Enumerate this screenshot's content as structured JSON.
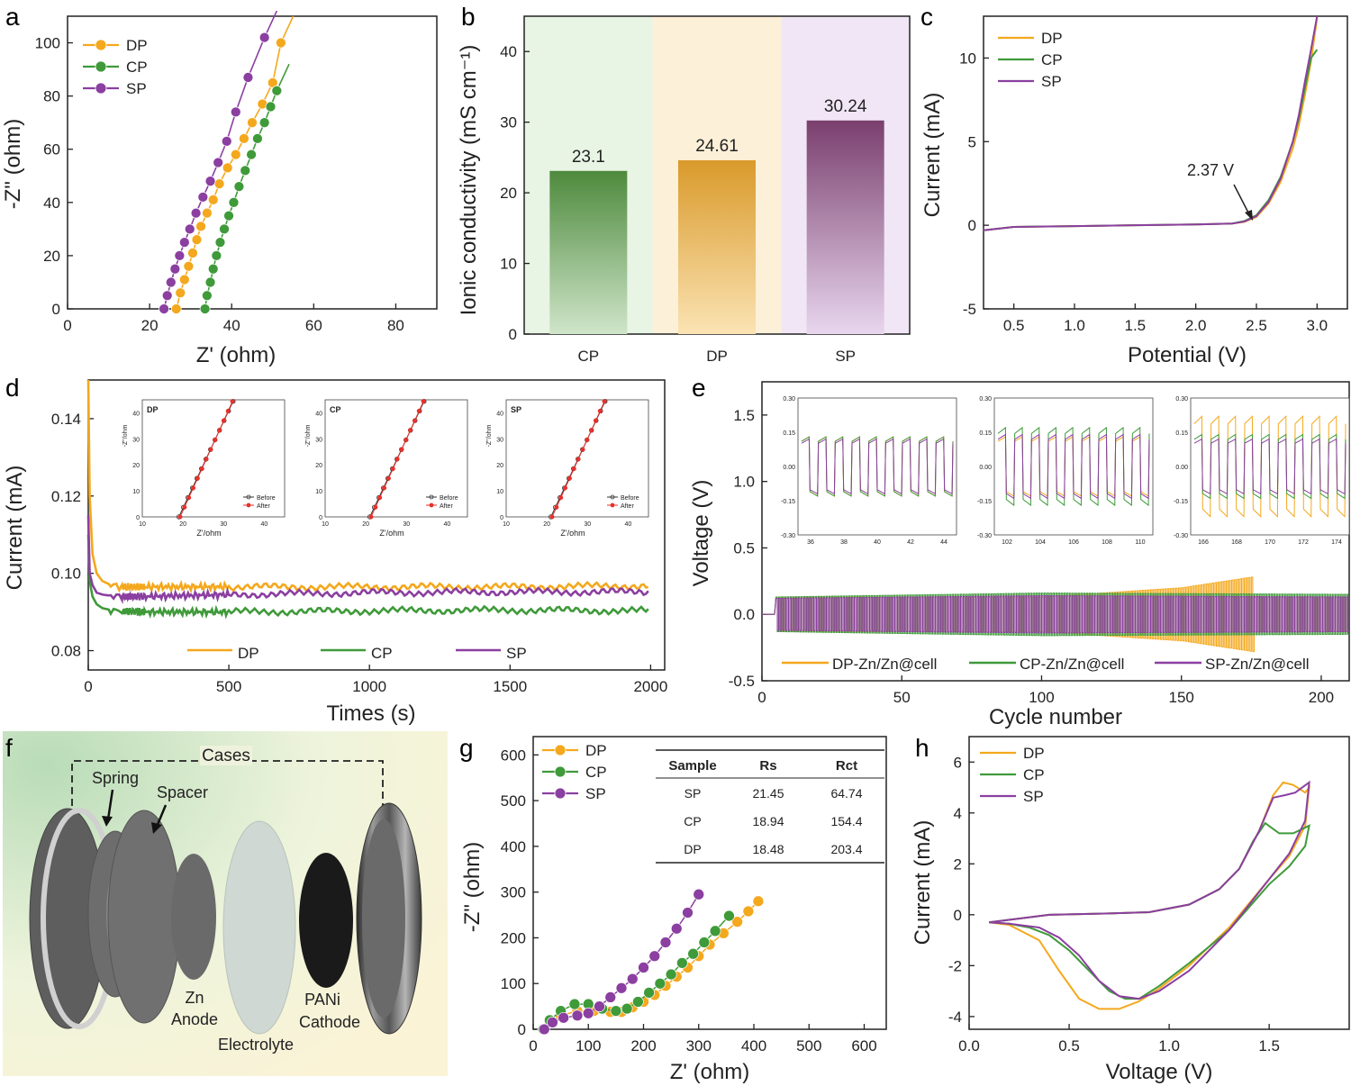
{
  "colors": {
    "DP": "#f4a81d",
    "CP": "#3f9a3a",
    "SP": "#8b3fa0",
    "red": "#e8312b",
    "black": "#333333"
  },
  "panel_labels": [
    "a",
    "b",
    "c",
    "d",
    "e",
    "f",
    "g",
    "h"
  ],
  "chart_data": [
    {
      "id": "a",
      "type": "scatter",
      "xlabel": "Z' (ohm)",
      "ylabel": "-Z\" (ohm)",
      "xlim": [
        0,
        90
      ],
      "ylim": [
        0,
        110
      ],
      "xticks": [
        0,
        20,
        40,
        60,
        80
      ],
      "yticks": [
        0,
        20,
        40,
        60,
        80,
        100
      ],
      "legend_position": "top-left",
      "series": [
        {
          "name": "DP",
          "color": "#f4a81d",
          "x": [
            26.5,
            27.5,
            28.5,
            29.5,
            30.5,
            31.5,
            32.5,
            34,
            35.5,
            37,
            39,
            41,
            43,
            45,
            47.5,
            50,
            52
          ],
          "y": [
            0,
            6,
            11,
            16,
            21,
            26,
            31,
            36,
            41,
            47,
            53,
            58,
            64,
            70,
            77,
            85,
            100
          ]
        },
        {
          "name": "CP",
          "color": "#3f9a3a",
          "x": [
            33.5,
            34,
            34.8,
            35.5,
            36.3,
            37.2,
            38.2,
            39.3,
            40.5,
            41.8,
            43.3,
            44.8,
            46.3,
            48,
            49.5,
            51
          ],
          "y": [
            0,
            5,
            10,
            15,
            20,
            25,
            30,
            35,
            40,
            46,
            52,
            58,
            64,
            70,
            76,
            82
          ]
        },
        {
          "name": "SP",
          "color": "#8b3fa0",
          "x": [
            23.5,
            24.3,
            25.2,
            26.2,
            27.3,
            28.5,
            29.8,
            31.3,
            33,
            34.8,
            36.7,
            38.8,
            41,
            44,
            48
          ],
          "y": [
            0,
            5,
            10,
            15,
            20,
            25,
            30,
            36,
            42,
            48,
            55,
            63,
            74,
            87,
            102
          ]
        }
      ]
    },
    {
      "id": "b",
      "type": "bar",
      "ylabel": "Ionic conductivity (mS cm⁻¹)",
      "categories": [
        "CP",
        "DP",
        "SP"
      ],
      "values": [
        23.1,
        24.61,
        30.24
      ],
      "value_labels": [
        "23.1",
        "24.61",
        "30.24"
      ],
      "ylim": [
        0,
        45
      ],
      "yticks": [
        0,
        10,
        20,
        30,
        40
      ],
      "bar_colors": [
        "#4e8a3d",
        "#d99a2b",
        "#7a3f6e"
      ],
      "background_colors": [
        "#e8f4e4",
        "#fdf0d8",
        "#f1e6f5"
      ]
    },
    {
      "id": "c",
      "type": "line",
      "xlabel": "Potential (V)",
      "ylabel": "Current (mA)",
      "xlim": [
        0.25,
        3.25
      ],
      "ylim": [
        -5,
        12.5
      ],
      "xticks": [
        0.5,
        1.0,
        1.5,
        2.0,
        2.5,
        3.0
      ],
      "yticks": [
        -5,
        0,
        5,
        10
      ],
      "annotation": "2.37 V",
      "legend_position": "top-left",
      "series": [
        {
          "name": "DP",
          "color": "#f4a81d",
          "x": [
            0.25,
            0.5,
            1.0,
            1.5,
            2.0,
            2.3,
            2.4,
            2.5,
            2.6,
            2.7,
            2.8,
            2.85,
            2.9,
            2.95,
            3.0
          ],
          "y": [
            -0.3,
            -0.1,
            -0.05,
            0,
            0.05,
            0.1,
            0.2,
            0.5,
            1.3,
            2.6,
            4.6,
            6.0,
            7.8,
            9.8,
            12.4
          ]
        },
        {
          "name": "CP",
          "color": "#3f9a3a",
          "x": [
            0.25,
            0.5,
            1.0,
            1.5,
            2.0,
            2.3,
            2.4,
            2.5,
            2.6,
            2.7,
            2.8,
            2.85,
            2.9,
            2.95,
            3.0
          ],
          "y": [
            -0.3,
            -0.1,
            -0.05,
            0,
            0.05,
            0.1,
            0.25,
            0.6,
            1.5,
            2.9,
            5.0,
            6.4,
            8.2,
            10.0,
            10.5
          ]
        },
        {
          "name": "SP",
          "color": "#8b3fa0",
          "x": [
            0.25,
            0.5,
            1.0,
            1.5,
            2.0,
            2.3,
            2.4,
            2.5,
            2.6,
            2.7,
            2.8,
            2.85,
            2.9,
            2.95,
            3.0
          ],
          "y": [
            -0.3,
            -0.1,
            -0.05,
            0,
            0.05,
            0.1,
            0.22,
            0.55,
            1.4,
            2.8,
            5.0,
            6.6,
            8.6,
            10.5,
            12.5
          ]
        }
      ]
    },
    {
      "id": "d",
      "type": "line",
      "xlabel": "Times (s)",
      "ylabel": "Current (mA)",
      "xlim": [
        0,
        2050
      ],
      "ylim": [
        0.075,
        0.15
      ],
      "xticks": [
        0,
        500,
        1000,
        1500,
        2000
      ],
      "yticks": [
        0.08,
        0.1,
        0.12,
        0.14
      ],
      "legend_position": "bottom",
      "series": [
        {
          "name": "DP",
          "color": "#f4a81d",
          "x": [
            0,
            5,
            15,
            30,
            50,
            80,
            120,
            200,
            500,
            1000,
            1500,
            2000
          ],
          "y": [
            0.15,
            0.12,
            0.105,
            0.1,
            0.098,
            0.097,
            0.0965,
            0.0965,
            0.0965,
            0.0965,
            0.0965,
            0.0968
          ]
        },
        {
          "name": "CP",
          "color": "#3f9a3a",
          "x": [
            0,
            5,
            15,
            30,
            50,
            80,
            120,
            200,
            500,
            1000,
            1500,
            2000
          ],
          "y": [
            0.11,
            0.098,
            0.094,
            0.092,
            0.091,
            0.0905,
            0.0902,
            0.09,
            0.09,
            0.0903,
            0.0905,
            0.0903
          ]
        },
        {
          "name": "SP",
          "color": "#8b3fa0",
          "x": [
            0,
            5,
            15,
            30,
            50,
            80,
            120,
            200,
            500,
            1000,
            1500,
            2000
          ],
          "y": [
            0.115,
            0.1,
            0.097,
            0.095,
            0.0945,
            0.0942,
            0.094,
            0.094,
            0.0945,
            0.095,
            0.0952,
            0.0952
          ]
        }
      ],
      "insets": [
        {
          "title": "DP",
          "xlabel": "Z'/ohm",
          "ylabel": "-Z''/ohm",
          "xticks": [
            10,
            20,
            30,
            40
          ],
          "yticks": [
            0,
            10,
            20,
            30,
            40
          ],
          "legend": [
            "Before",
            "After"
          ]
        },
        {
          "title": "CP",
          "xlabel": "Z'/ohm",
          "ylabel": "-Z''/ohm",
          "xticks": [
            10,
            20,
            30,
            40
          ],
          "yticks": [
            0,
            10,
            20,
            30,
            40
          ],
          "legend": [
            "Before",
            "After"
          ]
        },
        {
          "title": "SP",
          "xlabel": "Z'/ohm",
          "ylabel": "-Z''/ohm",
          "xticks": [
            10,
            20,
            30,
            40
          ],
          "yticks": [
            0,
            10,
            20,
            30,
            40
          ],
          "legend": [
            "Before",
            "After"
          ]
        }
      ]
    },
    {
      "id": "e",
      "type": "line",
      "xlabel": "Cycle number",
      "ylabel": "Voltage (V)",
      "xlim": [
        0,
        210
      ],
      "ylim": [
        -0.5,
        1.75
      ],
      "xticks": [
        0,
        50,
        100,
        150,
        200
      ],
      "yticks": [
        -0.5,
        0.0,
        0.5,
        1.0,
        1.5
      ],
      "legend_position": "bottom",
      "series": [
        {
          "name": "DP-Zn/Zn@cell",
          "color": "#f4a81d",
          "amplitude_by_cycle": {
            "x": [
              5,
              100,
              150,
              175,
              176,
              210
            ],
            "y": [
              0.13,
              0.13,
              0.2,
              0.28,
              0.13,
              0.13
            ]
          }
        },
        {
          "name": "CP-Zn/Zn@cell",
          "color": "#3f9a3a",
          "amplitude_by_cycle": {
            "x": [
              5,
              100,
              210
            ],
            "y": [
              0.13,
              0.16,
              0.15
            ]
          }
        },
        {
          "name": "SP-Zn/Zn@cell",
          "color": "#8b3fa0",
          "amplitude_by_cycle": {
            "x": [
              5,
              100,
              210
            ],
            "y": [
              0.12,
              0.14,
              0.13
            ]
          }
        }
      ],
      "insets": [
        {
          "xticks": [
            "36",
            "38",
            "40",
            "42",
            "44"
          ],
          "yticks": [
            "-0.30",
            "-0.15",
            "0.00",
            "0.15",
            "0.30"
          ]
        },
        {
          "xticks": [
            "102",
            "104",
            "106",
            "108",
            "110"
          ],
          "yticks": [
            "-0.30",
            "-0.15",
            "0.00",
            "0.15",
            "0.30"
          ]
        },
        {
          "xticks": [
            "166",
            "168",
            "170",
            "172",
            "174"
          ],
          "yticks": [
            "-0.30",
            "-0.15",
            "0.00",
            "0.15",
            "0.30"
          ]
        }
      ]
    },
    {
      "id": "g",
      "type": "scatter",
      "xlabel": "Z' (ohm)",
      "ylabel": "-Z\" (ohm)",
      "xlim": [
        0,
        640
      ],
      "ylim": [
        0,
        640
      ],
      "xticks": [
        0,
        100,
        200,
        300,
        400,
        500,
        600
      ],
      "yticks": [
        0,
        100,
        200,
        300,
        400,
        500,
        600
      ],
      "legend_position": "top-left",
      "series": [
        {
          "name": "DP",
          "color": "#f4a81d",
          "x": [
            18,
            30,
            50,
            80,
            110,
            140,
            160,
            180,
            200,
            220,
            240,
            260,
            280,
            300,
            320,
            345,
            370,
            390,
            408
          ],
          "y": [
            0,
            15,
            30,
            40,
            40,
            38,
            38,
            48,
            60,
            75,
            95,
            115,
            135,
            160,
            185,
            210,
            235,
            258,
            280
          ]
        },
        {
          "name": "CP",
          "color": "#3f9a3a",
          "x": [
            18,
            30,
            50,
            75,
            100,
            125,
            150,
            170,
            190,
            210,
            230,
            250,
            270,
            290,
            310,
            330,
            355
          ],
          "y": [
            0,
            20,
            40,
            55,
            55,
            45,
            40,
            45,
            60,
            80,
            100,
            120,
            145,
            165,
            190,
            215,
            248
          ]
        },
        {
          "name": "SP",
          "color": "#8b3fa0",
          "x": [
            20,
            35,
            55,
            80,
            100,
            120,
            140,
            160,
            180,
            200,
            220,
            240,
            260,
            280,
            300
          ],
          "y": [
            0,
            15,
            25,
            30,
            35,
            50,
            70,
            90,
            110,
            135,
            160,
            190,
            220,
            255,
            295
          ]
        }
      ],
      "table": {
        "headers": [
          "Sample",
          "Rs",
          "Rct"
        ],
        "rows": [
          [
            "SP",
            "21.45",
            "64.74"
          ],
          [
            "CP",
            "18.94",
            "154.4"
          ],
          [
            "DP",
            "18.48",
            "203.4"
          ]
        ]
      }
    },
    {
      "id": "h",
      "type": "line",
      "xlabel": "Voltage (V)",
      "ylabel": "Current (mA)",
      "xlim": [
        0,
        1.9
      ],
      "ylim": [
        -4.5,
        7
      ],
      "xticks": [
        0.0,
        0.5,
        1.0,
        1.5
      ],
      "yticks": [
        -4,
        -2,
        0,
        2,
        4,
        6
      ],
      "legend_position": "top-left",
      "series": [
        {
          "name": "DP",
          "color": "#f4a81d",
          "x": [
            0.1,
            0.4,
            0.7,
            0.9,
            1.1,
            1.25,
            1.35,
            1.45,
            1.52,
            1.57,
            1.62,
            1.68,
            1.7,
            1.68,
            1.6,
            1.5,
            1.3,
            1.1,
            0.95,
            0.85,
            0.75,
            0.65,
            0.55,
            0.45,
            0.35,
            0.2,
            0.1
          ],
          "y": [
            -0.3,
            0,
            0.05,
            0.1,
            0.4,
            1.0,
            1.8,
            3.3,
            4.7,
            5.2,
            5.1,
            4.8,
            5.0,
            3.5,
            2.3,
            1.4,
            -0.5,
            -2.0,
            -2.9,
            -3.4,
            -3.7,
            -3.7,
            -3.3,
            -2.2,
            -1.0,
            -0.4,
            -0.3
          ]
        },
        {
          "name": "CP",
          "color": "#3f9a3a",
          "x": [
            0.1,
            0.4,
            0.7,
            0.9,
            1.1,
            1.25,
            1.35,
            1.42,
            1.48,
            1.55,
            1.62,
            1.7,
            1.68,
            1.6,
            1.5,
            1.3,
            1.1,
            0.95,
            0.85,
            0.78,
            0.7,
            0.6,
            0.5,
            0.4,
            0.3,
            0.2,
            0.1
          ],
          "y": [
            -0.3,
            0,
            0.05,
            0.1,
            0.4,
            1.0,
            1.8,
            2.9,
            3.6,
            3.2,
            3.2,
            3.5,
            2.7,
            1.9,
            1.2,
            -0.6,
            -1.9,
            -2.8,
            -3.3,
            -3.3,
            -3.0,
            -2.2,
            -1.4,
            -0.8,
            -0.5,
            -0.35,
            -0.3
          ]
        },
        {
          "name": "SP",
          "color": "#8b3fa0",
          "x": [
            0.1,
            0.4,
            0.7,
            0.9,
            1.1,
            1.25,
            1.35,
            1.45,
            1.52,
            1.58,
            1.63,
            1.7,
            1.68,
            1.6,
            1.5,
            1.3,
            1.1,
            0.95,
            0.85,
            0.75,
            0.65,
            0.55,
            0.45,
            0.35,
            0.2,
            0.1
          ],
          "y": [
            -0.3,
            0,
            0.05,
            0.1,
            0.4,
            1.0,
            1.8,
            3.3,
            4.6,
            4.7,
            4.8,
            5.2,
            3.7,
            2.4,
            1.4,
            -0.6,
            -2.2,
            -3.0,
            -3.3,
            -3.2,
            -2.6,
            -1.6,
            -0.9,
            -0.5,
            -0.35,
            -0.3
          ]
        }
      ]
    }
  ],
  "schematic_f": {
    "labels": {
      "cases": "Cases",
      "spring": "Spring",
      "spacer": "Spacer",
      "zn": "Zn",
      "anode": "Anode",
      "electrolyte": "Electrolyte",
      "pani": "PANi",
      "cathode": "Cathode"
    }
  }
}
